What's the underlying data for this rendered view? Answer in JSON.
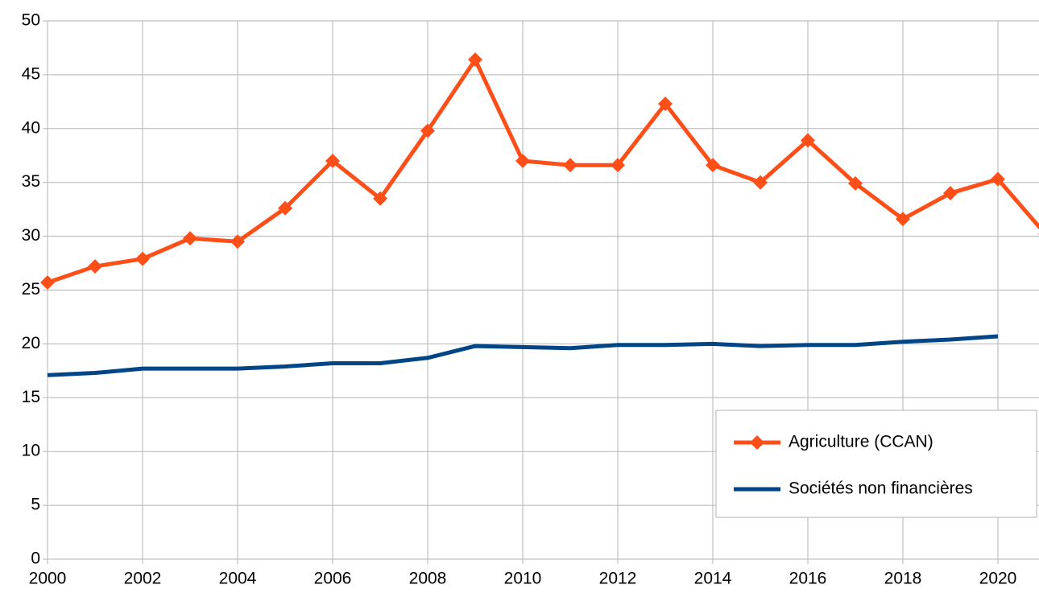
{
  "chart_data": {
    "type": "line",
    "x": [
      2000,
      2001,
      2002,
      2003,
      2004,
      2005,
      2006,
      2007,
      2008,
      2009,
      2010,
      2011,
      2012,
      2013,
      2014,
      2015,
      2016,
      2017,
      2018,
      2019,
      2020,
      2021
    ],
    "series": [
      {
        "name": "Agriculture (CCAN)",
        "color": "#ff4f19",
        "marker": "diamond",
        "values": [
          25.7,
          27.2,
          27.9,
          29.8,
          29.5,
          32.6,
          37.0,
          33.5,
          39.8,
          46.4,
          37.0,
          36.6,
          36.6,
          42.3,
          36.6,
          35.0,
          38.9,
          34.9,
          31.6,
          34.0,
          35.3,
          30.2
        ]
      },
      {
        "name": "Sociétés non financières",
        "color": "#004586",
        "values": [
          17.1,
          17.3,
          17.7,
          17.7,
          17.7,
          17.9,
          18.2,
          18.2,
          18.7,
          19.8,
          19.7,
          19.6,
          19.9,
          19.9,
          20.0,
          19.8,
          19.9,
          19.9,
          20.2,
          20.4,
          20.7,
          null
        ]
      }
    ],
    "xlim": [
      2000,
      2021
    ],
    "xticks": [
      2000,
      2002,
      2004,
      2006,
      2008,
      2010,
      2012,
      2014,
      2016,
      2018,
      2020
    ],
    "ylim": [
      0,
      50
    ],
    "yticks": [
      0,
      5,
      10,
      15,
      20,
      25,
      30,
      35,
      40,
      45,
      50
    ],
    "grid": true,
    "legend": "lower right"
  }
}
